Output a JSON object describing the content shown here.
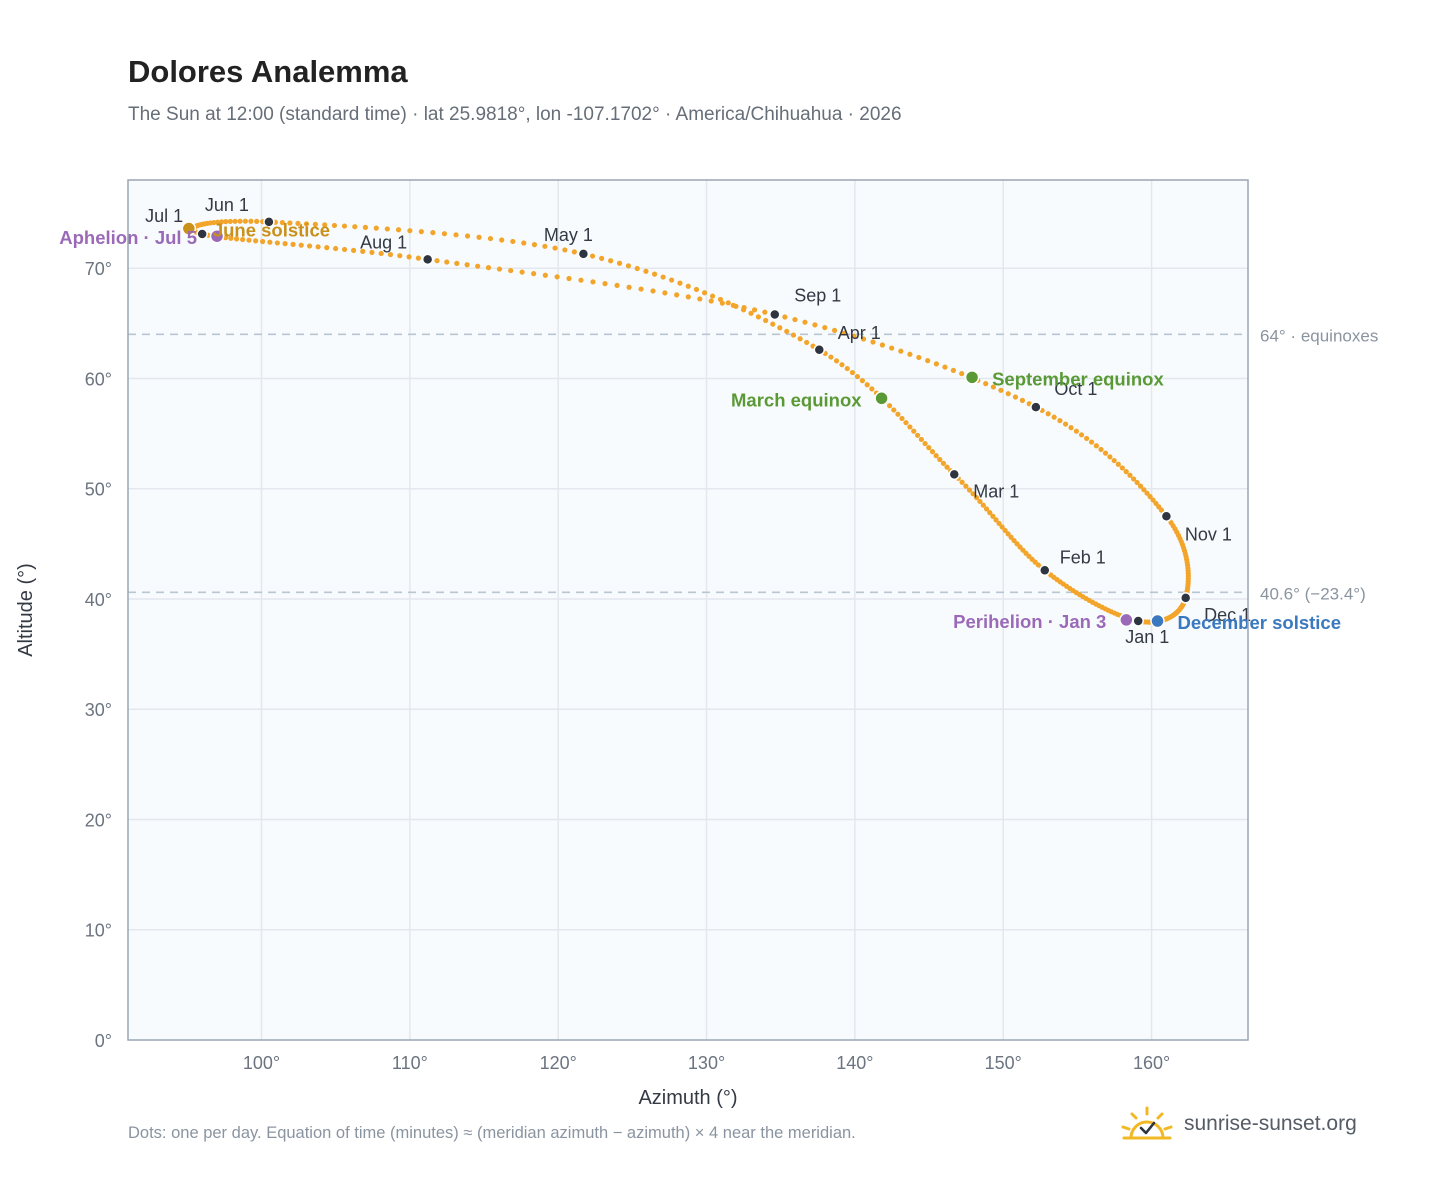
{
  "chart_data": {
    "type": "scatter",
    "title": "Dolores Analemma",
    "subtitle": "The Sun at 12:00 (standard time) · lat 25.9818°, lon -107.1702° · America/Chihuahua · 2026",
    "xlabel": "Azimuth (°)",
    "ylabel": "Altitude (°)",
    "xlim": [
      91,
      166.5
    ],
    "ylim": [
      0,
      78
    ],
    "x_ticks": [
      100,
      110,
      120,
      130,
      140,
      150,
      160
    ],
    "y_ticks": [
      0,
      10,
      20,
      30,
      40,
      50,
      60,
      70
    ],
    "tick_suffix": "°",
    "grid": true,
    "series": [
      {
        "label_note": "Dots: one per day",
        "monthly_points": [
          {
            "label": "Jan 1",
            "az": 159.1,
            "alt": 38.0
          },
          {
            "label": "Feb 1",
            "az": 152.8,
            "alt": 42.6
          },
          {
            "label": "Mar 1",
            "az": 146.7,
            "alt": 51.3
          },
          {
            "label": "Apr 1",
            "az": 137.6,
            "alt": 62.6
          },
          {
            "label": "May 1",
            "az": 121.7,
            "alt": 71.3
          },
          {
            "label": "Jun 1",
            "az": 100.5,
            "alt": 74.2
          },
          {
            "label": "Jul 1",
            "az": 96.0,
            "alt": 73.1
          },
          {
            "label": "Aug 1",
            "az": 111.2,
            "alt": 70.8
          },
          {
            "label": "Sep 1",
            "az": 134.6,
            "alt": 65.8
          },
          {
            "label": "Oct 1",
            "az": 152.2,
            "alt": 57.4
          },
          {
            "label": "Nov 1",
            "az": 161.0,
            "alt": 47.5
          },
          {
            "label": "Dec 1",
            "az": 162.3,
            "alt": 40.1
          }
        ]
      }
    ],
    "events": [
      {
        "label": "June solstice",
        "az": 95.1,
        "alt": 73.6,
        "color": "#c9911a"
      },
      {
        "label": "Aphelion · Jul 5",
        "az": 97.0,
        "alt": 72.9,
        "color": "#9a6ab8"
      },
      {
        "label": "March equinox",
        "az": 141.8,
        "alt": 58.2,
        "color": "#5a9a36"
      },
      {
        "label": "September equinox",
        "az": 147.9,
        "alt": 60.1,
        "color": "#5a9a36"
      },
      {
        "label": "Perihelion · Jan 3",
        "az": 158.3,
        "alt": 38.1,
        "color": "#9a6ab8"
      },
      {
        "label": "December solstice",
        "az": 160.4,
        "alt": 38.0,
        "color": "#3a78c0"
      }
    ],
    "reference_lines": [
      {
        "y": 64,
        "label": "64° · equinoxes"
      },
      {
        "y": 40.6,
        "label": "40.6° (−23.4°)"
      }
    ]
  },
  "footnote": "Dots: one per day. Equation of time (minutes) ≈ (meridian azimuth − azimuth) × 4 near the meridian.",
  "brand": "sunrise-sunset.org",
  "colors": {
    "curve": "#f2a52a",
    "month_dot": "#2e3440",
    "plot_bg": "#f8fbfd",
    "grid": "#e3e8ee",
    "ref_line": "#b8c6d4",
    "axis": "#9aa6b4",
    "brand_sun": "#f2b824"
  },
  "brand_icon": "sun-check-icon"
}
